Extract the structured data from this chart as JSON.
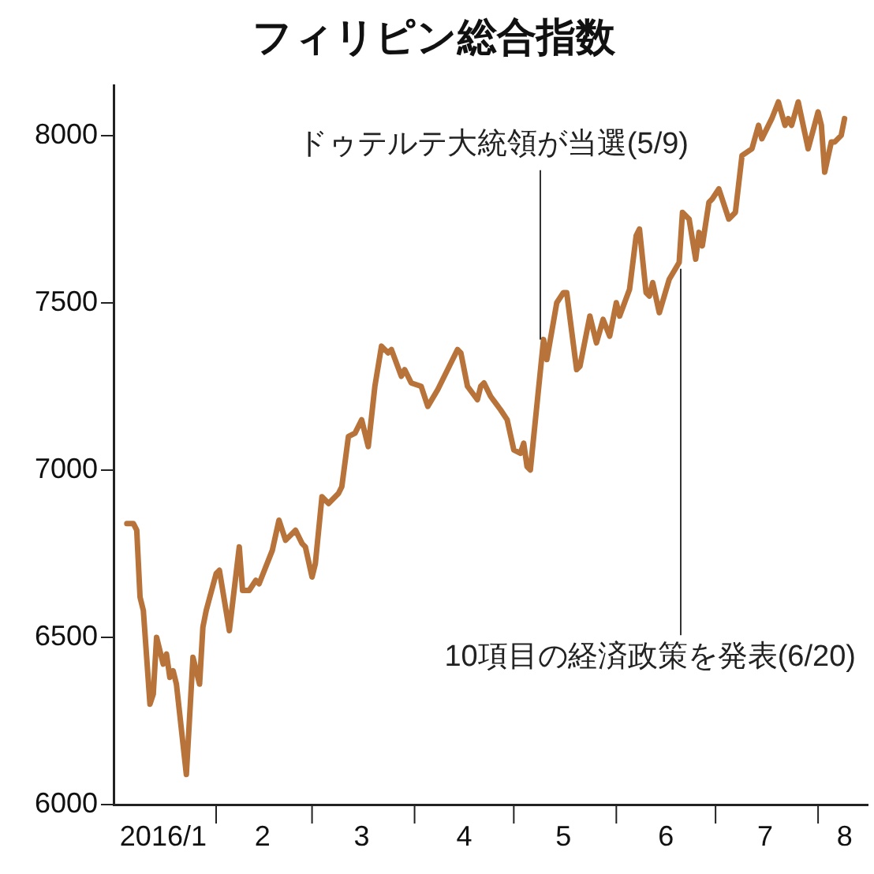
{
  "chart_data": {
    "type": "line",
    "title": "フィリピン総合指数",
    "x": [
      "2016-01-05",
      "2016-01-07",
      "2016-01-08",
      "2016-01-09",
      "2016-01-10",
      "2016-01-12",
      "2016-01-13",
      "2016-01-14",
      "2016-01-16",
      "2016-01-17",
      "2016-01-18",
      "2016-01-19",
      "2016-01-20",
      "2016-01-23",
      "2016-01-25",
      "2016-01-27",
      "2016-01-28",
      "2016-01-29",
      "2016-02-01",
      "2016-02-02",
      "2016-02-05",
      "2016-02-08",
      "2016-02-09",
      "2016-02-11",
      "2016-02-13",
      "2016-02-14",
      "2016-02-18",
      "2016-02-20",
      "2016-02-22",
      "2016-02-25",
      "2016-02-27",
      "2016-02-28",
      "2016-03-01",
      "2016-03-02",
      "2016-03-04",
      "2016-03-06",
      "2016-03-09",
      "2016-03-10",
      "2016-03-12",
      "2016-03-14",
      "2016-03-16",
      "2016-03-18",
      "2016-03-20",
      "2016-03-22",
      "2016-03-24",
      "2016-03-25",
      "2016-03-28",
      "2016-03-29",
      "2016-03-31",
      "2016-04-03",
      "2016-04-05",
      "2016-04-08",
      "2016-04-10",
      "2016-04-12",
      "2016-04-14",
      "2016-04-15",
      "2016-04-17",
      "2016-04-20",
      "2016-04-21",
      "2016-04-22",
      "2016-04-24",
      "2016-04-27",
      "2016-04-29",
      "2016-05-01",
      "2016-05-03",
      "2016-05-04",
      "2016-05-05",
      "2016-05-06",
      "2016-05-10",
      "2016-05-11",
      "2016-05-14",
      "2016-05-16",
      "2016-05-17",
      "2016-05-20",
      "2016-05-21",
      "2016-05-24",
      "2016-05-26",
      "2016-05-28",
      "2016-05-30",
      "2016-06-01",
      "2016-06-02",
      "2016-06-05",
      "2016-06-07",
      "2016-06-08",
      "2016-06-10",
      "2016-06-11",
      "2016-06-12",
      "2016-06-14",
      "2016-06-17",
      "2016-06-20",
      "2016-06-21",
      "2016-06-23",
      "2016-06-25",
      "2016-06-26",
      "2016-06-27",
      "2016-06-29",
      "2016-06-30",
      "2016-07-02",
      "2016-07-05",
      "2016-07-07",
      "2016-07-09",
      "2016-07-12",
      "2016-07-14",
      "2016-07-15",
      "2016-07-18",
      "2016-07-20",
      "2016-07-22",
      "2016-07-23",
      "2016-07-24",
      "2016-07-26",
      "2016-07-29",
      "2016-08-01",
      "2016-08-02",
      "2016-08-03",
      "2016-08-05",
      "2016-08-06",
      "2016-08-08",
      "2016-08-09"
    ],
    "series": [
      {
        "color": "#b8733a",
        "values": [
          6840,
          6840,
          6820,
          6620,
          6580,
          6300,
          6330,
          6500,
          6420,
          6450,
          6380,
          6400,
          6360,
          6090,
          6440,
          6360,
          6530,
          6580,
          6690,
          6700,
          6520,
          6770,
          6640,
          6640,
          6670,
          6660,
          6760,
          6850,
          6790,
          6820,
          6780,
          6770,
          6680,
          6720,
          6920,
          6900,
          6930,
          6950,
          7100,
          7110,
          7150,
          7070,
          7250,
          7370,
          7350,
          7360,
          7280,
          7300,
          7260,
          7250,
          7190,
          7240,
          7280,
          7320,
          7360,
          7350,
          7250,
          7210,
          7250,
          7260,
          7220,
          7180,
          7150,
          7060,
          7050,
          7080,
          7010,
          7000,
          7390,
          7330,
          7500,
          7530,
          7530,
          7300,
          7310,
          7460,
          7380,
          7450,
          7400,
          7500,
          7460,
          7540,
          7700,
          7720,
          7530,
          7520,
          7560,
          7470,
          7570,
          7620,
          7770,
          7750,
          7630,
          7710,
          7670,
          7800,
          7810,
          7840,
          7750,
          7770,
          7940,
          7960,
          8030,
          7990,
          8050,
          8100,
          8030,
          8050,
          8030,
          8100,
          7960,
          8070,
          8030,
          7890,
          7980,
          7980,
          8000,
          8050
        ]
      }
    ],
    "xlim": [
      "2016-01-01",
      "2016-08-16"
    ],
    "xticks": [
      {
        "value": "2016-01-16",
        "label": "2016/1"
      },
      {
        "value": "2016-02-01",
        "label": null
      },
      {
        "value": "2016-02-15",
        "label": "2"
      },
      {
        "value": "2016-03-01",
        "label": null
      },
      {
        "value": "2016-03-16",
        "label": "3"
      },
      {
        "value": "2016-04-01",
        "label": null
      },
      {
        "value": "2016-04-16",
        "label": "4"
      },
      {
        "value": "2016-05-01",
        "label": null
      },
      {
        "value": "2016-05-16",
        "label": "5"
      },
      {
        "value": "2016-06-01",
        "label": null
      },
      {
        "value": "2016-06-16",
        "label": "6"
      },
      {
        "value": "2016-07-01",
        "label": null
      },
      {
        "value": "2016-07-16",
        "label": "7"
      },
      {
        "value": "2016-08-01",
        "label": null
      },
      {
        "value": "2016-08-09",
        "label": "8"
      }
    ],
    "ylim": [
      6000,
      8150
    ],
    "yticks": [
      6000,
      6500,
      7000,
      7500,
      8000
    ],
    "grid": false,
    "legend": false,
    "marker": "none",
    "line_style": "solid",
    "annotations": [
      {
        "text": "ドゥテルテ大統領が当選(5/9)",
        "x": "2016-05-09",
        "y": 7390
      },
      {
        "text": "10項目の経済政策を発表(6/20)",
        "x": "2016-06-20",
        "y": 7620
      }
    ]
  }
}
